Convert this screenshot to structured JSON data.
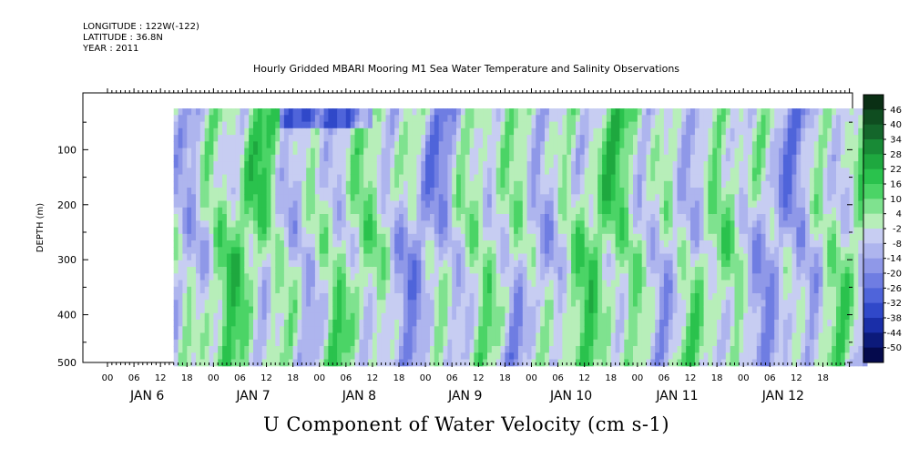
{
  "header": {
    "longitude": "LONGITUDE : 122W(-122)",
    "latitude": "LATITUDE : 36.8N",
    "year": "YEAR : 2011"
  },
  "chart_data": {
    "type": "heatmap",
    "title": "Hourly Gridded MBARI Mooring M1 Sea Water Temperature and Salinity Observations",
    "xlabel": "U Component of Water Velocity (cm s-1)",
    "ylabel": "DEPTH (m)",
    "x_hour_ticks": [
      "00",
      "06",
      "12",
      "18",
      "00",
      "06",
      "12",
      "18",
      "00",
      "06",
      "12",
      "18",
      "00",
      "06",
      "12",
      "18",
      "00",
      "06",
      "12",
      "18",
      "00",
      "06",
      "12",
      "18",
      "00",
      "06",
      "12",
      "18"
    ],
    "x_day_labels": [
      "JAN 6",
      "JAN 7",
      "JAN 8",
      "JAN 9",
      "JAN 10",
      "JAN 11",
      "JAN 12"
    ],
    "y_ticks": [
      100,
      200,
      300,
      400,
      500
    ],
    "ylim": [
      500,
      10
    ],
    "colorbar": {
      "levels": [
        "46",
        "40",
        "34",
        "28",
        "22",
        "16",
        "10",
        "4",
        "-2",
        "-8",
        "-14",
        "-20",
        "-26",
        "-32",
        "-38",
        "-44",
        "-50"
      ],
      "range": [
        -50,
        50
      ],
      "colors": [
        "#0a2f14",
        "#0f4d20",
        "#14662b",
        "#188a36",
        "#1ea83f",
        "#2ac24d",
        "#4bd466",
        "#7fe28f",
        "#b7eeb9",
        "#c7cdf2",
        "#aeb5ee",
        "#8f98e8",
        "#6f7de2",
        "#4f64da",
        "#3048c9",
        "#1a2ea8",
        "#0c1a7a",
        "#050a4d"
      ]
    },
    "data_extent_hours": [
      15,
      172
    ],
    "grid": false
  }
}
